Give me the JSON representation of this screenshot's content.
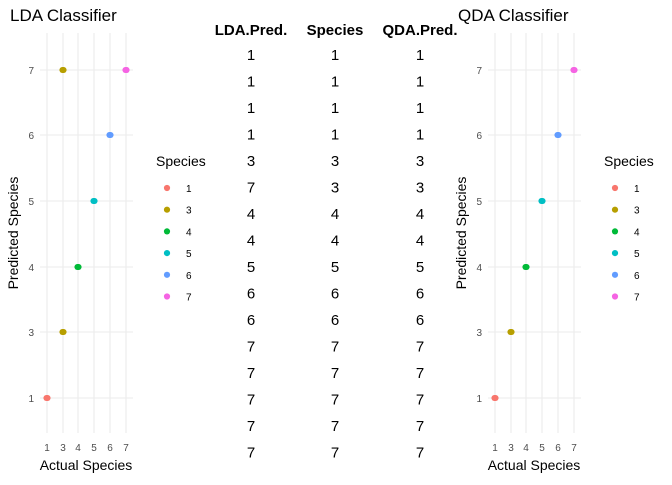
{
  "chart_data": [
    {
      "type": "scatter",
      "title": "LDA Classifier",
      "xlabel": "Actual Species",
      "ylabel": "Predicted Species",
      "x_categories": [
        "1",
        "3",
        "4",
        "5",
        "6",
        "7"
      ],
      "y_categories": [
        "1",
        "3",
        "4",
        "5",
        "6",
        "7"
      ],
      "grid": true,
      "legend": {
        "title": "Species",
        "placement": "right",
        "entries": [
          {
            "label": "1",
            "color": "#F8766D"
          },
          {
            "label": "3",
            "color": "#B79F00"
          },
          {
            "label": "4",
            "color": "#00BA38"
          },
          {
            "label": "5",
            "color": "#00BFC4"
          },
          {
            "label": "6",
            "color": "#619CFF"
          },
          {
            "label": "7",
            "color": "#F564E3"
          }
        ]
      },
      "points": [
        {
          "x": "1",
          "y": "1",
          "species": "1"
        },
        {
          "x": "3",
          "y": "3",
          "species": "3"
        },
        {
          "x": "3",
          "y": "7",
          "species": "3"
        },
        {
          "x": "4",
          "y": "4",
          "species": "4"
        },
        {
          "x": "5",
          "y": "5",
          "species": "5"
        },
        {
          "x": "6",
          "y": "6",
          "species": "6"
        },
        {
          "x": "7",
          "y": "7",
          "species": "7"
        }
      ]
    },
    {
      "type": "table",
      "columns": [
        "LDA.Pred.",
        "Species",
        "QDA.Pred."
      ],
      "rows": [
        [
          "1",
          "1",
          "1"
        ],
        [
          "1",
          "1",
          "1"
        ],
        [
          "1",
          "1",
          "1"
        ],
        [
          "1",
          "1",
          "1"
        ],
        [
          "3",
          "3",
          "3"
        ],
        [
          "7",
          "3",
          "3"
        ],
        [
          "4",
          "4",
          "4"
        ],
        [
          "4",
          "4",
          "4"
        ],
        [
          "5",
          "5",
          "5"
        ],
        [
          "6",
          "6",
          "6"
        ],
        [
          "6",
          "6",
          "6"
        ],
        [
          "7",
          "7",
          "7"
        ],
        [
          "7",
          "7",
          "7"
        ],
        [
          "7",
          "7",
          "7"
        ],
        [
          "7",
          "7",
          "7"
        ],
        [
          "7",
          "7",
          "7"
        ]
      ]
    },
    {
      "type": "scatter",
      "title": "QDA Classifier",
      "xlabel": "Actual Species",
      "ylabel": "Predicted Species",
      "x_categories": [
        "1",
        "3",
        "4",
        "5",
        "6",
        "7"
      ],
      "y_categories": [
        "1",
        "3",
        "4",
        "5",
        "6",
        "7"
      ],
      "grid": true,
      "legend": {
        "title": "Species",
        "placement": "right",
        "entries": [
          {
            "label": "1",
            "color": "#F8766D"
          },
          {
            "label": "3",
            "color": "#B79F00"
          },
          {
            "label": "4",
            "color": "#00BA38"
          },
          {
            "label": "5",
            "color": "#00BFC4"
          },
          {
            "label": "6",
            "color": "#619CFF"
          },
          {
            "label": "7",
            "color": "#F564E3"
          }
        ]
      },
      "points": [
        {
          "x": "1",
          "y": "1",
          "species": "1"
        },
        {
          "x": "3",
          "y": "3",
          "species": "3"
        },
        {
          "x": "4",
          "y": "4",
          "species": "4"
        },
        {
          "x": "5",
          "y": "5",
          "species": "5"
        },
        {
          "x": "6",
          "y": "6",
          "species": "6"
        },
        {
          "x": "7",
          "y": "7",
          "species": "7"
        }
      ]
    }
  ]
}
